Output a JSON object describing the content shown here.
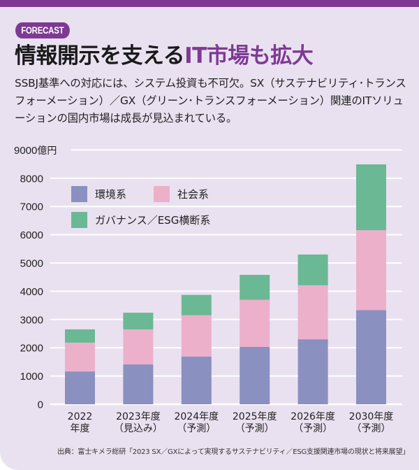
{
  "header": {
    "badge": "FORECAST",
    "title_main": "情報開示を支える",
    "title_highlight": "IT市場も拡大"
  },
  "lead": "SSBJ基準への対応には、システム投資も不可欠。SX（サステナビリティ･トランスフォーメーション）／GX（グリーン･トランスフォーメーション）関連のITソリューションの国内市場は成長が見込まれている。",
  "source": "出典：富士キメラ総研「2023 SX／GXによって実現するサステナビリティ／ESG支援関連市場の現状と将来展望」",
  "colors": {
    "brand": "#7e3a93",
    "background": "#e9e1f0",
    "environment": "#8a90c0",
    "social": "#ecb0cb",
    "governance": "#6bb894",
    "gridline": "#ffffff"
  },
  "chart_data": {
    "type": "bar",
    "stacked": true,
    "title": "",
    "xlabel": "",
    "ylabel": "億円",
    "unit_label": "億円",
    "ylim": [
      0,
      9000
    ],
    "yticks": [
      0,
      1000,
      2000,
      3000,
      4000,
      5000,
      6000,
      7000,
      8000,
      9000
    ],
    "grid": true,
    "legend_position": "top-left",
    "categories": [
      [
        "2022",
        "年度"
      ],
      [
        "2023年度",
        "（見込み）"
      ],
      [
        "2024年度",
        "（予測）"
      ],
      [
        "2025年度",
        "（予測）"
      ],
      [
        "2026年度",
        "（予測）"
      ],
      [
        "2030年度",
        "（予測）"
      ]
    ],
    "series": [
      {
        "name": "環境系",
        "color": "#8a90c0",
        "values": [
          1160,
          1410,
          1690,
          2030,
          2300,
          3330
        ]
      },
      {
        "name": "社会系",
        "color": "#ecb0cb",
        "values": [
          1020,
          1240,
          1460,
          1670,
          1910,
          2830
        ]
      },
      {
        "name": "ガバナンス／ESG横断系",
        "color": "#6bb894",
        "values": [
          470,
          590,
          720,
          880,
          1090,
          2330
        ]
      }
    ],
    "totals": [
      2650,
      3240,
      3870,
      4580,
      5300,
      8490
    ]
  }
}
